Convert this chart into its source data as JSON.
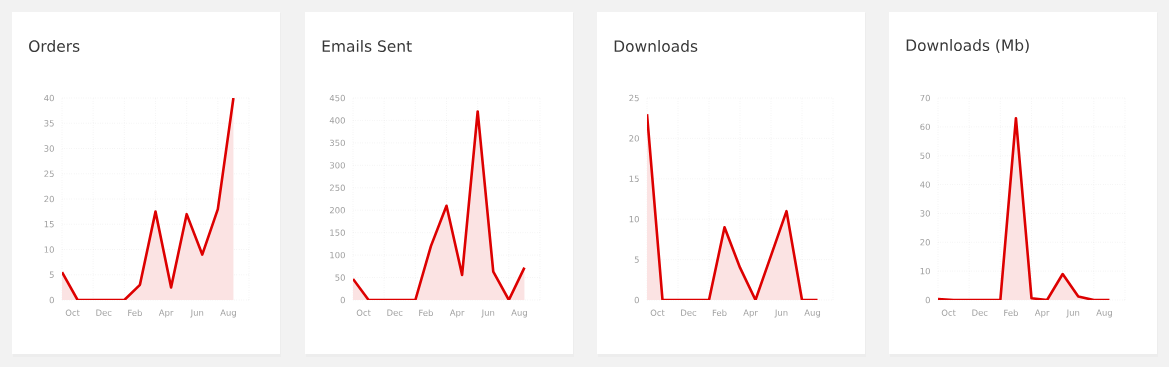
{
  "chart_data": [
    {
      "type": "area",
      "title": "Orders",
      "categories": [
        null,
        "Oct",
        null,
        "Dec",
        null,
        "Feb",
        null,
        "Apr",
        null,
        "Jun",
        null,
        "Aug"
      ],
      "values": [
        5.5,
        0,
        0,
        0,
        0,
        3,
        17.5,
        2.5,
        17,
        9,
        18,
        40
      ],
      "color": "#dd0000",
      "ylim": [
        0,
        40
      ],
      "yticks": [
        0,
        5,
        10,
        15,
        20,
        25,
        30,
        35,
        40
      ],
      "grid": true
    },
    {
      "type": "area",
      "title": "Emails Sent",
      "categories": [
        null,
        "Oct",
        null,
        "Dec",
        null,
        "Feb",
        null,
        "Apr",
        null,
        "Jun",
        null,
        "Aug"
      ],
      "values": [
        47,
        0,
        0,
        0,
        0,
        120,
        210,
        56,
        420,
        63,
        0,
        72
      ],
      "color": "#dd0000",
      "ylim": [
        0,
        450
      ],
      "yticks": [
        0,
        50,
        100,
        150,
        200,
        250,
        300,
        350,
        400,
        450
      ],
      "grid": true
    },
    {
      "type": "area",
      "title": "Downloads",
      "categories": [
        null,
        "Oct",
        null,
        "Dec",
        null,
        "Feb",
        null,
        "Apr",
        null,
        "Jun",
        null,
        "Aug"
      ],
      "values": [
        23,
        0,
        0,
        0,
        0,
        9,
        4,
        0,
        5.5,
        11,
        0,
        0
      ],
      "color": "#dd0000",
      "ylim": [
        0,
        25
      ],
      "yticks": [
        0,
        5,
        10,
        15,
        20,
        25
      ],
      "grid": true
    },
    {
      "type": "area",
      "title": "Downloads (Mb)",
      "categories": [
        null,
        "Oct",
        null,
        "Dec",
        null,
        "Feb",
        null,
        "Apr",
        null,
        "Jun",
        null,
        "Aug"
      ],
      "values": [
        0.3,
        0,
        0,
        0,
        0,
        63,
        0.6,
        0,
        9,
        1.2,
        0,
        0
      ],
      "color": "#dd0000",
      "ylim": [
        0,
        70
      ],
      "yticks": [
        0,
        10,
        20,
        30,
        40,
        50,
        60,
        70
      ],
      "grid": true
    }
  ]
}
